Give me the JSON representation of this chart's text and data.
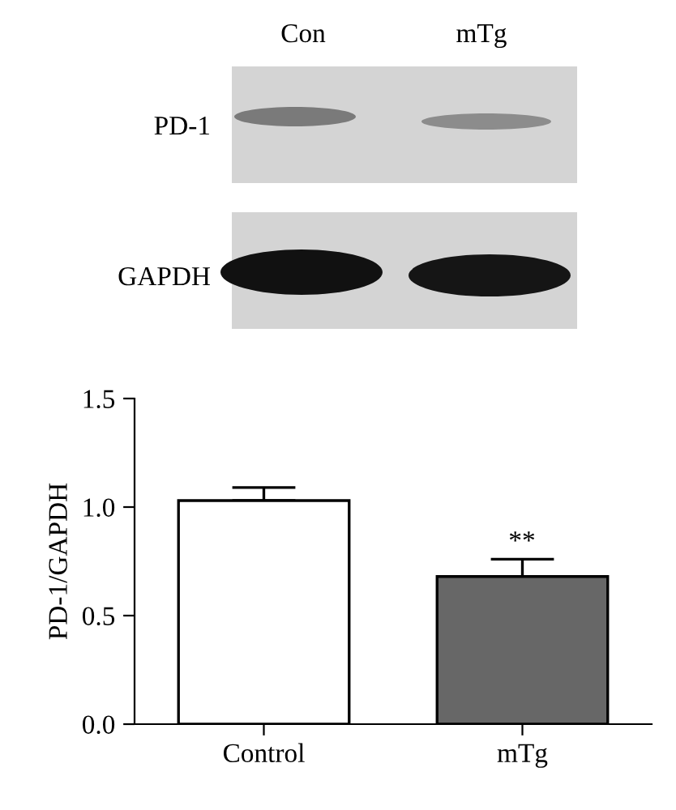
{
  "chart_data": {
    "type": "bar",
    "ylabel": "PD-1/GAPDH",
    "categories": [
      "Control",
      "mTg"
    ],
    "values": [
      1.03,
      0.68
    ],
    "errors": [
      0.06,
      0.08
    ],
    "colors": [
      "#ffffff",
      "#676767"
    ],
    "ylim": [
      0,
      1.5
    ],
    "yticks": [
      {
        "value": 0,
        "label": "0.0"
      },
      {
        "value": 0.5,
        "label": "0.5"
      },
      {
        "value": 1,
        "label": "1.0"
      },
      {
        "value": 1.5,
        "label": "1.5"
      }
    ],
    "grid": false,
    "annotations": [
      "Con",
      "mTg",
      "PD-1",
      "GAPDH",
      "**"
    ]
  }
}
